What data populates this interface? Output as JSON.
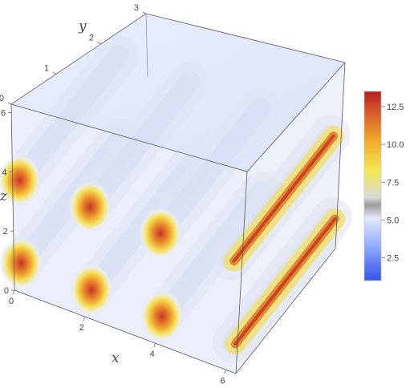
{
  "chart_data": {
    "type": "density3d",
    "title": "",
    "axes": {
      "x": {
        "label": "x",
        "range": [
          0,
          6.283
        ],
        "ticks": [
          "0",
          "2",
          "4",
          "6"
        ]
      },
      "y": {
        "label": "y",
        "range": [
          0,
          3
        ],
        "ticks": [
          "0",
          "1",
          "2",
          "3"
        ]
      },
      "z": {
        "label": "z",
        "range": [
          0,
          6.283
        ],
        "ticks": [
          "0",
          "2",
          "4",
          "6"
        ]
      }
    },
    "colorbar": {
      "range": [
        1,
        13.5
      ],
      "ticks": [
        "2.5",
        "5.0",
        "7.5",
        "10.0",
        "12.5"
      ],
      "palette": [
        "#3a5cf0",
        "#9db6ff",
        "#e9eefb",
        "#a8a8a8",
        "#f3e64a",
        "#f0a324",
        "#d14b2b",
        "#b3201c"
      ]
    },
    "tubes": {
      "direction": "y",
      "x_centers": [
        0.2,
        2.2,
        4.2,
        6.2
      ],
      "z_centers": [
        1.0,
        3.8
      ],
      "peak_value": 13,
      "background_value": 5
    },
    "grid": false,
    "legend": "right"
  }
}
